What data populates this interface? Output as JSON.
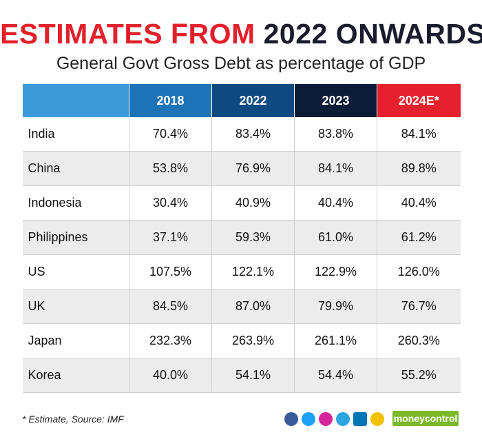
{
  "header": {
    "title_part1": "ESTIMATES FROM",
    "title_part2": "2022 ONWARDS",
    "subtitle": "General Govt Gross Debt as percentage of GDP"
  },
  "table": {
    "columns": [
      "",
      "2018",
      "2022",
      "2023",
      "2024E*"
    ],
    "rows": [
      [
        "India",
        "70.4%",
        "83.4%",
        "83.8%",
        "84.1%"
      ],
      [
        "China",
        "53.8%",
        "76.9%",
        "84.1%",
        "89.8%"
      ],
      [
        "Indonesia",
        "30.4%",
        "40.9%",
        "40.4%",
        "40.4%"
      ],
      [
        "Philippines",
        "37.1%",
        "59.3%",
        "61.0%",
        "61.2%"
      ],
      [
        "US",
        "107.5%",
        "122.1%",
        "122.9%",
        "126.0%"
      ],
      [
        "UK",
        "84.5%",
        "87.0%",
        "79.9%",
        "76.7%"
      ],
      [
        "Japan",
        "232.3%",
        "263.9%",
        "261.1%",
        "260.3%"
      ],
      [
        "Korea",
        "40.0%",
        "54.1%",
        "54.4%",
        "55.2%"
      ]
    ]
  },
  "footer": {
    "note": "* Estimate, Source: IMF",
    "logo": "moneycontrol"
  }
}
